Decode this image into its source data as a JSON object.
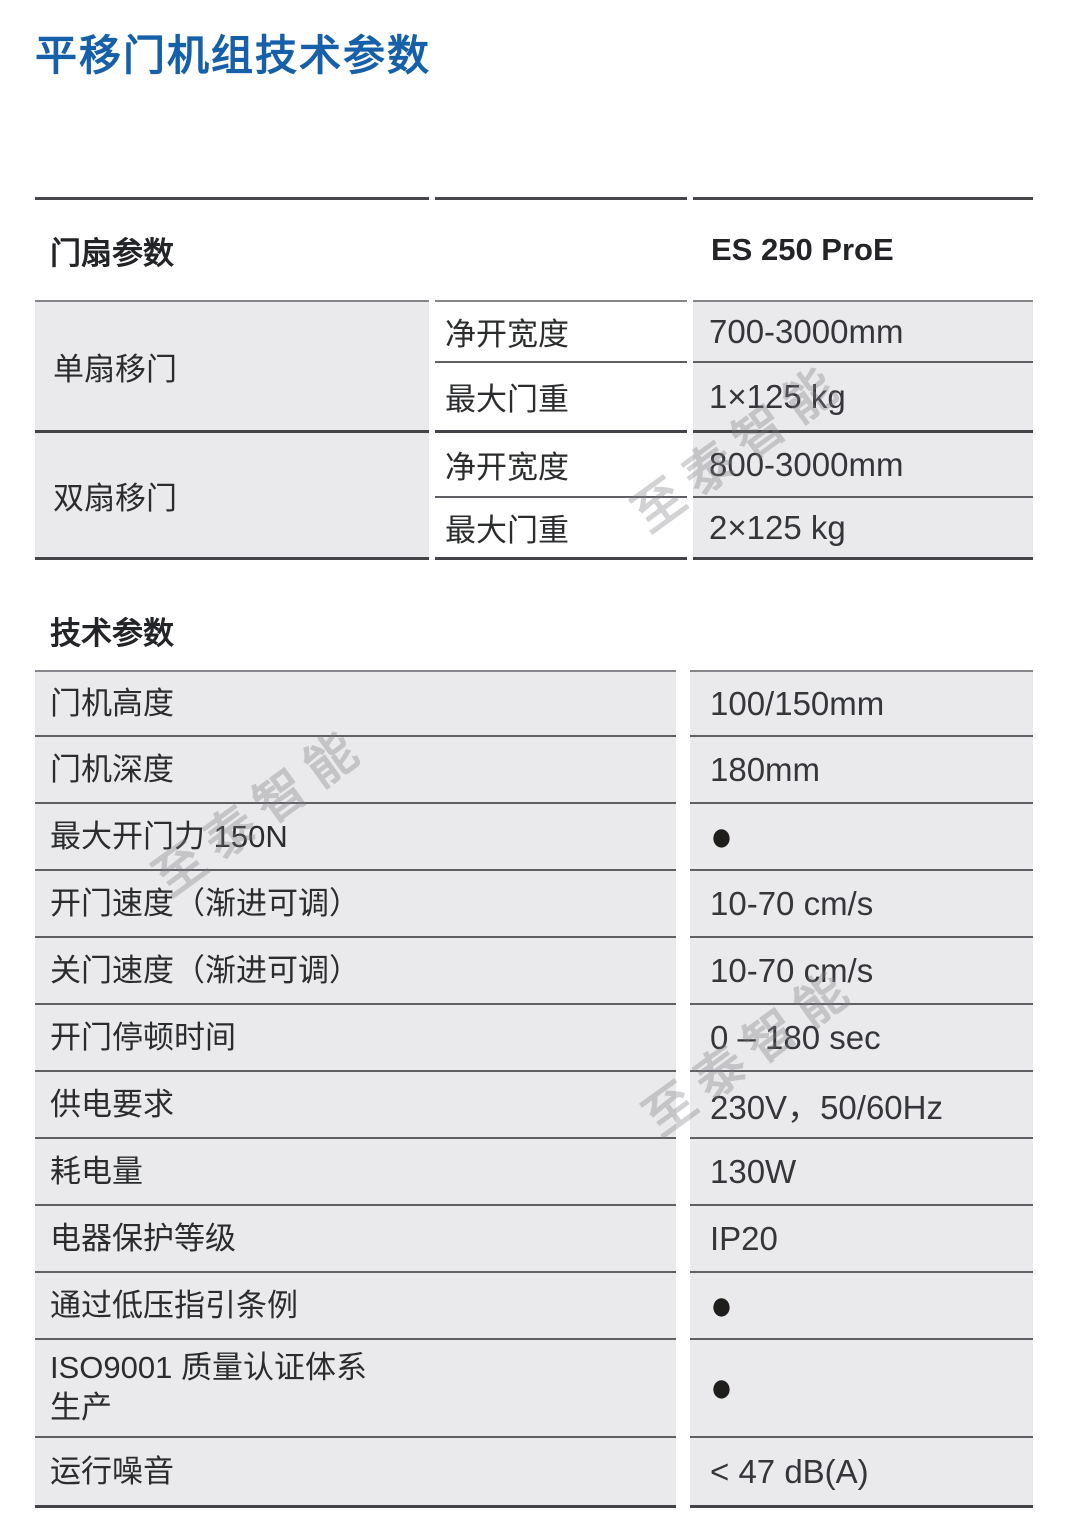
{
  "page": {
    "title": "平移门机组技术参数"
  },
  "watermark": {
    "text": "至泰智能"
  },
  "door_table": {
    "header": {
      "label": "门扇参数",
      "model": "ES 250 ProE"
    },
    "groups": [
      {
        "label": "单扇移门",
        "rows": [
          {
            "param": "净开宽度",
            "value": "700-3000mm"
          },
          {
            "param": "最大门重",
            "value": "1×125 kg"
          }
        ]
      },
      {
        "label": "双扇移门",
        "rows": [
          {
            "param": "净开宽度",
            "value": "800-3000mm"
          },
          {
            "param": "最大门重",
            "value": "2×125 kg"
          }
        ]
      }
    ]
  },
  "tech_table": {
    "title": "技术参数",
    "rows": [
      {
        "label": "门机高度",
        "value": "100/150mm"
      },
      {
        "label": "门机深度",
        "value": "180mm"
      },
      {
        "label": "最大开门力 150N",
        "value": "●"
      },
      {
        "label": "开门速度（渐进可调）",
        "value": "10-70 cm/s"
      },
      {
        "label": "关门速度（渐进可调）",
        "value": "10-70 cm/s"
      },
      {
        "label": "开门停顿时间",
        "value": "0 – 180 sec"
      },
      {
        "label": "供电要求",
        "value": "230V，50/60Hz"
      },
      {
        "label": "耗电量",
        "value": "130W"
      },
      {
        "label": "电器保护等级",
        "value": "IP20"
      },
      {
        "label": "通过低压指引条例",
        "value": "●"
      },
      {
        "label": "ISO9001 质量认证体系\n生产",
        "value": "●"
      },
      {
        "label": "运行噪音",
        "value": "< 47 dB(A)"
      }
    ]
  },
  "colors": {
    "accent_blue": "#1560A8",
    "cell_gray": "#eaeaec",
    "divider_dark": "#434448"
  }
}
